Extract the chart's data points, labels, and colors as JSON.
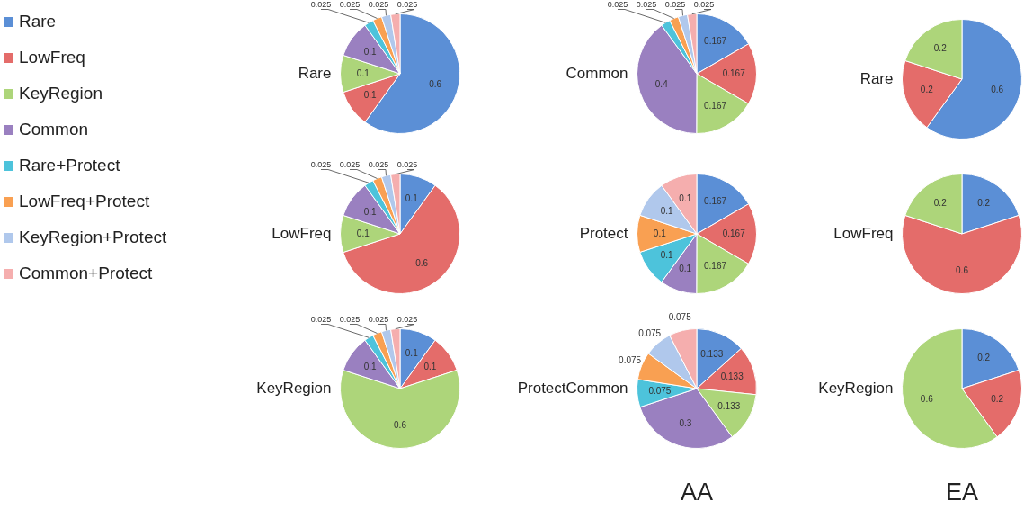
{
  "chart_data": [
    {
      "type": "pie",
      "title": "Rare",
      "legend": "left",
      "data_labels": true,
      "categories": [
        "Rare",
        "LowFreq",
        "KeyRegion",
        "Common",
        "Rare+Protect",
        "LowFreq+Protect",
        "KeyRegion+Protect",
        "Common+Protect"
      ],
      "values": [
        0.6,
        0.1,
        0.1,
        0.1,
        0.025,
        0.025,
        0.025,
        0.025
      ],
      "colors": [
        "#5b8fd6",
        "#e46c6a",
        "#add57a",
        "#9a80c0",
        "#4dc3db",
        "#f9a052",
        "#b0c8ec",
        "#f5aeae"
      ]
    },
    {
      "type": "pie",
      "title": "Common",
      "data_labels": true,
      "categories": [
        null,
        null,
        null,
        null,
        null,
        null,
        null,
        null
      ],
      "values": [
        0.167,
        0.167,
        0.167,
        0.4,
        0.025,
        0.025,
        0.025,
        0.025
      ],
      "colors": [
        "#5b8fd6",
        "#e46c6a",
        "#add57a",
        "#9a80c0",
        "#4dc3db",
        "#f9a052",
        "#b0c8ec",
        "#f5aeae"
      ]
    },
    {
      "type": "pie",
      "title": "Rare",
      "data_labels": true,
      "categories": [
        null,
        null,
        null
      ],
      "values": [
        0.6,
        0.2,
        0.2
      ],
      "colors": [
        "#5b8fd6",
        "#e46c6a",
        "#add57a"
      ]
    },
    {
      "type": "pie",
      "title": "LowFreq",
      "data_labels": true,
      "categories": [
        null,
        null,
        null,
        null,
        null,
        null,
        null,
        null
      ],
      "values": [
        0.1,
        0.6,
        0.1,
        0.1,
        0.025,
        0.025,
        0.025,
        0.025
      ],
      "colors": [
        "#5b8fd6",
        "#e46c6a",
        "#add57a",
        "#9a80c0",
        "#4dc3db",
        "#f9a052",
        "#b0c8ec",
        "#f5aeae"
      ]
    },
    {
      "type": "pie",
      "title": "Protect",
      "data_labels": true,
      "categories": [
        null,
        null,
        null,
        null,
        null,
        null,
        null,
        null
      ],
      "values": [
        0.167,
        0.167,
        0.167,
        0.1,
        0.1,
        0.1,
        0.1,
        0.1
      ],
      "colors": [
        "#5b8fd6",
        "#e46c6a",
        "#add57a",
        "#9a80c0",
        "#4dc3db",
        "#f9a052",
        "#b0c8ec",
        "#f5aeae"
      ]
    },
    {
      "type": "pie",
      "title": "LowFreq",
      "data_labels": true,
      "categories": [
        null,
        null,
        null
      ],
      "values": [
        0.2,
        0.6,
        0.2
      ],
      "colors": [
        "#5b8fd6",
        "#e46c6a",
        "#add57a"
      ]
    },
    {
      "type": "pie",
      "title": "KeyRegion",
      "data_labels": true,
      "categories": [
        null,
        null,
        null,
        null,
        null,
        null,
        null,
        null
      ],
      "values": [
        0.1,
        0.1,
        0.6,
        0.1,
        0.025,
        0.025,
        0.025,
        0.025
      ],
      "colors": [
        "#5b8fd6",
        "#e46c6a",
        "#add57a",
        "#9a80c0",
        "#4dc3db",
        "#f9a052",
        "#b0c8ec",
        "#f5aeae"
      ]
    },
    {
      "type": "pie",
      "title": "ProtectCommon",
      "data_labels": true,
      "annotations": [
        "AA"
      ],
      "categories": [
        null,
        null,
        null,
        null,
        null,
        null,
        null,
        null
      ],
      "values": [
        0.133,
        0.133,
        0.133,
        0.3,
        0.075,
        0.075,
        0.075,
        0.075
      ],
      "colors": [
        "#5b8fd6",
        "#e46c6a",
        "#add57a",
        "#9a80c0",
        "#4dc3db",
        "#f9a052",
        "#b0c8ec",
        "#f5aeae"
      ]
    },
    {
      "type": "pie",
      "title": "KeyRegion",
      "data_labels": true,
      "annotations": [
        "EA"
      ],
      "categories": [
        null,
        null,
        null
      ],
      "values": [
        0.2,
        0.2,
        0.6
      ],
      "colors": [
        "#5b8fd6",
        "#e46c6a",
        "#add57a"
      ]
    }
  ]
}
